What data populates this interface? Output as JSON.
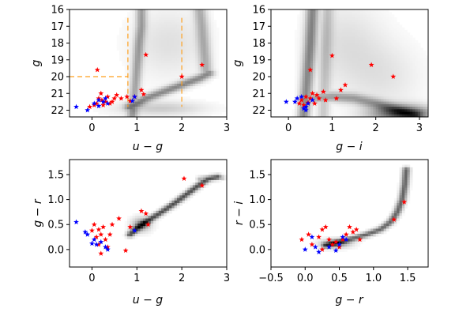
{
  "chart_data": [
    {
      "type": "scatter",
      "xlabel": "u − g",
      "ylabel": "g",
      "xlim": [
        -0.5,
        3.0
      ],
      "ylim": [
        22.4,
        16.0
      ],
      "xticks": [
        0,
        1,
        2,
        3
      ],
      "yticks": [
        16,
        17,
        18,
        19,
        20,
        21,
        22
      ],
      "density": {
        "ridges": [
          {
            "x": [
              0.85,
              1.0,
              1.2,
              1.5,
              1.8,
              2.1,
              2.4,
              2.6
            ],
            "y": [
              21.8,
              21.6,
              21.3,
              21.0,
              20.7,
              20.4,
              20.1,
              19.8
            ],
            "w": 0.09,
            "s": 0.45
          },
          {
            "x": [
              0.9,
              0.95,
              1.0,
              1.05,
              1.1,
              1.1
            ],
            "y": [
              22.3,
              21.0,
              19.5,
              18.0,
              17.0,
              16.0
            ],
            "w": 0.08,
            "s": 0.35
          },
          {
            "x": [
              2.55,
              2.5,
              2.45,
              2.4
            ],
            "y": [
              19.8,
              18.5,
              17.0,
              16.0
            ],
            "w": 0.1,
            "s": 0.3
          }
        ],
        "blobs": [
          {
            "x": 1.7,
            "y": 18.0,
            "sx": 0.6,
            "sy": 1.5,
            "s": 0.12
          },
          {
            "x": 1.5,
            "y": 21.9,
            "sx": 0.7,
            "sy": 0.3,
            "s": 0.2
          }
        ]
      },
      "lines": [
        {
          "x": [
            -0.5,
            0.8
          ],
          "y": [
            20.0,
            20.0
          ]
        },
        {
          "x": [
            0.8,
            0.8
          ],
          "y": [
            16.5,
            21.8
          ]
        },
        {
          "x": [
            2.0,
            2.0
          ],
          "y": [
            16.5,
            21.8
          ]
        }
      ],
      "series": [
        {
          "name": "red",
          "color": "#ff0000",
          "points": [
            [
              0.12,
              19.6
            ],
            [
              0.2,
              21.0
            ],
            [
              0.35,
              21.2
            ],
            [
              0.5,
              21.3
            ],
            [
              0.55,
              21.1
            ],
            [
              0.45,
              21.5
            ],
            [
              0.3,
              21.5
            ],
            [
              0.15,
              21.3
            ],
            [
              0.1,
              21.6
            ],
            [
              0.05,
              21.7
            ],
            [
              -0.05,
              21.8
            ],
            [
              0.25,
              21.7
            ],
            [
              0.65,
              21.3
            ],
            [
              0.78,
              21.2
            ],
            [
              0.85,
              21.45
            ],
            [
              0.95,
              21.2
            ],
            [
              1.1,
              20.8
            ],
            [
              1.2,
              18.7
            ],
            [
              1.15,
              21.05
            ],
            [
              2.0,
              20.0
            ],
            [
              2.45,
              19.3
            ],
            [
              0.4,
              21.6
            ],
            [
              0.22,
              21.4
            ]
          ]
        },
        {
          "name": "blue",
          "color": "#0000ff",
          "points": [
            [
              -0.35,
              21.8
            ],
            [
              -0.1,
              22.0
            ],
            [
              0.05,
              21.6
            ],
            [
              0.15,
              21.4
            ],
            [
              0.25,
              21.5
            ],
            [
              0.3,
              21.3
            ],
            [
              0.35,
              21.6
            ],
            [
              0.9,
              21.45
            ],
            [
              0.95,
              21.2
            ],
            [
              0.15,
              21.75
            ]
          ]
        }
      ]
    },
    {
      "type": "scatter",
      "xlabel": "g − i",
      "ylabel": "g",
      "xlim": [
        -0.4,
        3.2
      ],
      "ylim": [
        22.4,
        16.0
      ],
      "xticks": [
        0,
        1,
        2,
        3
      ],
      "yticks": [
        16,
        17,
        18,
        19,
        20,
        21,
        22
      ],
      "density": {
        "ridges": [
          {
            "x": [
              0.35,
              0.4,
              0.45,
              0.5,
              0.55
            ],
            "y": [
              22.3,
              21.0,
              19.5,
              18.0,
              16.0
            ],
            "w": 0.1,
            "s": 0.45
          },
          {
            "x": [
              0.5,
              1.0,
              1.5,
              2.0,
              2.5,
              2.9
            ],
            "y": [
              21.3,
              21.2,
              21.3,
              21.6,
              22.0,
              22.3
            ],
            "w": 0.12,
            "s": 0.35
          },
          {
            "x": [
              0.8,
              0.85,
              0.9
            ],
            "y": [
              22.3,
              19.0,
              16.0
            ],
            "w": 0.1,
            "s": 0.2
          }
        ],
        "blobs": [
          {
            "x": 2.6,
            "y": 22.2,
            "sx": 0.5,
            "sy": 0.35,
            "s": 0.65
          },
          {
            "x": 1.3,
            "y": 18.0,
            "sx": 0.6,
            "sy": 1.8,
            "s": 0.12
          },
          {
            "x": 2.2,
            "y": 20.0,
            "sx": 0.6,
            "sy": 1.5,
            "s": 0.1
          }
        ]
      },
      "lines": [],
      "series": [
        {
          "name": "red",
          "color": "#ff0000",
          "points": [
            [
              0.25,
              21.6
            ],
            [
              0.3,
              21.4
            ],
            [
              0.4,
              21.2
            ],
            [
              0.45,
              21.55
            ],
            [
              0.5,
              21.3
            ],
            [
              0.5,
              19.6
            ],
            [
              0.6,
              21.6
            ],
            [
              0.65,
              21.1
            ],
            [
              0.7,
              21.3
            ],
            [
              0.8,
              20.9
            ],
            [
              1.0,
              18.75
            ],
            [
              0.85,
              21.4
            ],
            [
              1.1,
              21.3
            ],
            [
              1.2,
              20.8
            ],
            [
              1.3,
              20.5
            ],
            [
              1.9,
              19.3
            ],
            [
              2.4,
              20.0
            ],
            [
              0.35,
              21.7
            ],
            [
              0.55,
              21.0
            ]
          ]
        },
        {
          "name": "blue",
          "color": "#0000ff",
          "points": [
            [
              -0.05,
              21.5
            ],
            [
              0.15,
              21.5
            ],
            [
              0.2,
              21.3
            ],
            [
              0.3,
              21.2
            ],
            [
              0.35,
              21.9
            ],
            [
              0.4,
              22.0
            ],
            [
              0.45,
              21.6
            ],
            [
              0.4,
              21.8
            ],
            [
              0.55,
              21.4
            ]
          ]
        }
      ]
    },
    {
      "type": "scatter",
      "xlabel": "u − g",
      "ylabel": "g − r",
      "xlim": [
        -0.5,
        3.0
      ],
      "ylim": [
        -0.35,
        1.8
      ],
      "xticks": [
        0,
        1,
        2,
        3
      ],
      "yticks": [
        0.0,
        0.5,
        1.0,
        1.5
      ],
      "density": {
        "ridges": [
          {
            "x": [
              0.85,
              1.0,
              1.2,
              1.5,
              1.8,
              2.1,
              2.4,
              2.6,
              2.8
            ],
            "y": [
              0.3,
              0.42,
              0.55,
              0.72,
              0.9,
              1.1,
              1.3,
              1.42,
              1.45
            ],
            "w": 0.06,
            "s": 0.7
          },
          {
            "x": [
              2.4,
              2.6,
              2.8,
              2.9
            ],
            "y": [
              1.42,
              1.45,
              1.45,
              1.44
            ],
            "w": 0.05,
            "s": 0.3
          }
        ],
        "blobs": [
          {
            "x": 1.1,
            "y": 0.5,
            "sx": 0.15,
            "sy": 0.1,
            "s": 0.4
          }
        ]
      },
      "lines": [],
      "series": [
        {
          "name": "red",
          "color": "#ff0000",
          "points": [
            [
              0.05,
              0.5
            ],
            [
              0.1,
              0.25
            ],
            [
              0.15,
              0.1
            ],
            [
              0.2,
              0.3
            ],
            [
              0.25,
              0.45
            ],
            [
              0.3,
              0.2
            ],
            [
              0.35,
              0.05
            ],
            [
              0.4,
              0.3
            ],
            [
              0.2,
              -0.08
            ],
            [
              0.45,
              0.5
            ],
            [
              0.6,
              0.62
            ],
            [
              0.75,
              -0.02
            ],
            [
              0.85,
              0.45
            ],
            [
              1.1,
              0.77
            ],
            [
              1.2,
              0.72
            ],
            [
              1.25,
              0.5
            ],
            [
              2.05,
              1.42
            ],
            [
              2.45,
              1.28
            ],
            [
              0.0,
              0.38
            ],
            [
              0.15,
              0.4
            ]
          ]
        },
        {
          "name": "blue",
          "color": "#0000ff",
          "points": [
            [
              -0.35,
              0.55
            ],
            [
              -0.15,
              0.35
            ],
            [
              0.0,
              0.12
            ],
            [
              0.05,
              0.2
            ],
            [
              0.1,
              0.1
            ],
            [
              0.2,
              0.15
            ],
            [
              0.3,
              0.05
            ],
            [
              0.35,
              0.0
            ],
            [
              0.95,
              0.38
            ],
            [
              -0.1,
              0.3
            ]
          ]
        }
      ]
    },
    {
      "type": "scatter",
      "xlabel": "g − r",
      "ylabel": "r − i",
      "xlim": [
        -0.5,
        1.8
      ],
      "ylim": [
        -0.35,
        1.8
      ],
      "xticks": [
        -0.5,
        0.0,
        0.5,
        1.0,
        1.5
      ],
      "yticks": [
        0.0,
        0.5,
        1.0,
        1.5
      ],
      "density": {
        "ridges": [
          {
            "x": [
              0.3,
              0.5,
              0.7,
              0.9,
              1.1,
              1.25,
              1.35,
              1.42,
              1.46,
              1.48
            ],
            "y": [
              0.08,
              0.15,
              0.22,
              0.3,
              0.4,
              0.55,
              0.75,
              1.0,
              1.3,
              1.6
            ],
            "w": 0.04,
            "s": 0.6
          }
        ],
        "blobs": [
          {
            "x": 0.45,
            "y": 0.12,
            "sx": 0.15,
            "sy": 0.06,
            "s": 0.45
          }
        ]
      },
      "lines": [],
      "series": [
        {
          "name": "red",
          "color": "#ff0000",
          "points": [
            [
              -0.05,
              0.2
            ],
            [
              0.05,
              0.3
            ],
            [
              0.1,
              0.1
            ],
            [
              0.2,
              0.25
            ],
            [
              0.25,
              0.4
            ],
            [
              0.3,
              0.45
            ],
            [
              0.35,
              0.2
            ],
            [
              0.4,
              0.1
            ],
            [
              0.45,
              0.15
            ],
            [
              0.5,
              0.05
            ],
            [
              0.55,
              0.2
            ],
            [
              0.6,
              0.3
            ],
            [
              0.65,
              0.45
            ],
            [
              0.7,
              0.35
            ],
            [
              0.75,
              0.4
            ],
            [
              0.8,
              0.2
            ],
            [
              1.3,
              0.6
            ],
            [
              1.45,
              0.95
            ],
            [
              0.25,
              0.0
            ]
          ]
        },
        {
          "name": "blue",
          "color": "#0000ff",
          "points": [
            [
              0.0,
              0.0
            ],
            [
              0.15,
              0.05
            ],
            [
              0.2,
              -0.05
            ],
            [
              0.35,
              0.05
            ],
            [
              0.45,
              -0.02
            ],
            [
              0.5,
              0.1
            ],
            [
              0.55,
              0.25
            ],
            [
              0.6,
              0.2
            ],
            [
              0.1,
              0.25
            ]
          ]
        }
      ]
    }
  ]
}
